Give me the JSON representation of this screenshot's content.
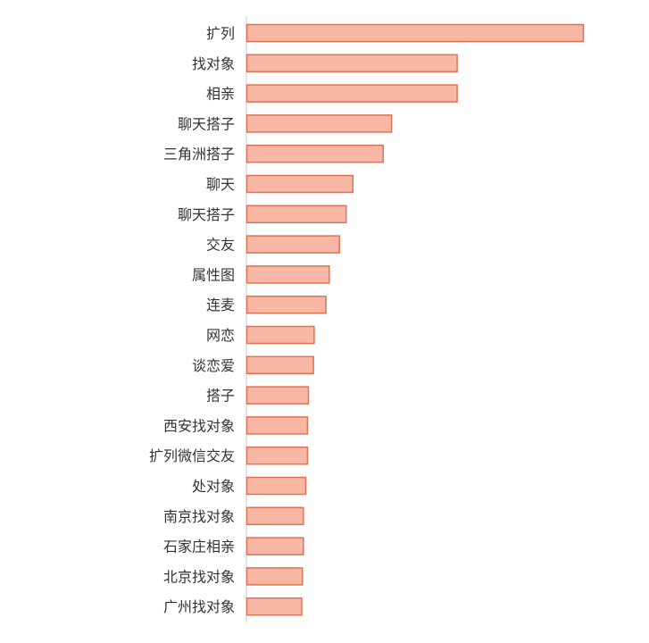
{
  "chart_data": {
    "type": "bar",
    "orientation": "horizontal",
    "title": "",
    "xlabel": "",
    "ylabel": "",
    "categories": [
      "扩列",
      "找对象",
      "相亲",
      "聊天搭子",
      "三角洲搭子",
      "聊天",
      "聊天搭子",
      "交友",
      "属性图",
      "连麦",
      "网恋",
      "谈恋爱",
      "搭子",
      "西安找对象",
      "扩列微信交友",
      "处对象",
      "南京找对象",
      "石家庄相亲",
      "北京找对象",
      "广州找对象"
    ],
    "values": [
      100,
      62.5,
      62.5,
      43,
      40.5,
      31.5,
      29.5,
      27.5,
      24.5,
      23.5,
      20,
      19.8,
      18.3,
      18,
      18,
      17.5,
      16.8,
      16.8,
      16.5,
      16.3
    ],
    "xlim": [
      0,
      100
    ],
    "grid": false,
    "colors": {
      "bar_fill": "#f9b8a5",
      "bar_stroke": "#e07154",
      "axis": "#cccccc"
    }
  }
}
